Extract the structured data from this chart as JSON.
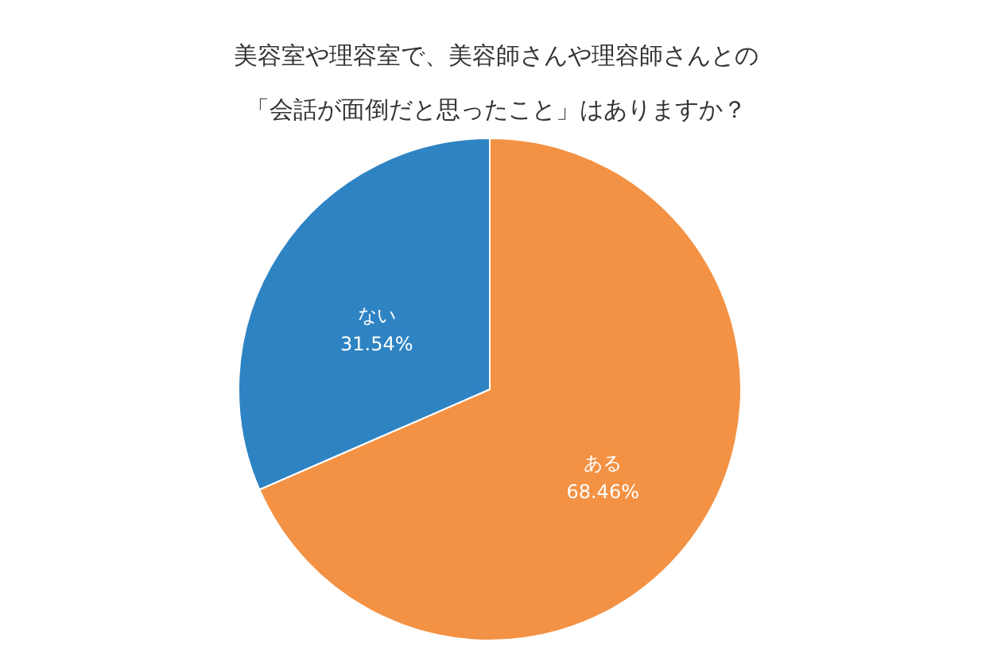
{
  "chart_data": {
    "type": "pie",
    "title": "美容室や理容室で、美容師さんや理容師さんとの「会話が面倒だと思ったこと」はありますか？",
    "categories": [
      "ある",
      "ない"
    ],
    "values": [
      68.46,
      31.54
    ],
    "colors": [
      "#f39244",
      "#2e83c3"
    ],
    "value_labels": [
      "68.46%",
      "31.54%"
    ]
  }
}
